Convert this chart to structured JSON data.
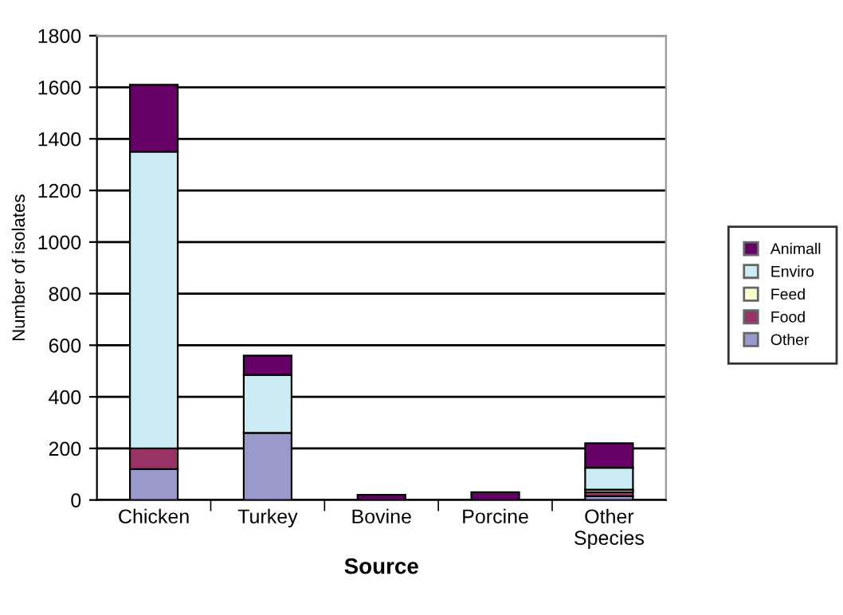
{
  "chart_data": {
    "type": "bar",
    "stacked": true,
    "xlabel": "Source",
    "ylabel": "Number of isolates",
    "categories": [
      "Chicken",
      "Turkey",
      "Bovine",
      "Porcine",
      "Other\nSpecies"
    ],
    "series": [
      {
        "name": "Other",
        "color": "#9999cc",
        "values": [
          120,
          260,
          0,
          0,
          15
        ]
      },
      {
        "name": "Food",
        "color": "#993366",
        "values": [
          80,
          0,
          0,
          0,
          15
        ]
      },
      {
        "name": "Feed",
        "color": "#ffffcc",
        "values": [
          0,
          0,
          0,
          0,
          10
        ]
      },
      {
        "name": "Enviro",
        "color": "#ccecf5",
        "values": [
          1150,
          225,
          0,
          0,
          85
        ]
      },
      {
        "name": "Animall",
        "color": "#660066",
        "values": [
          260,
          75,
          20,
          30,
          95
        ]
      }
    ],
    "ylim": [
      0,
      1800
    ],
    "yticks": [
      0,
      200,
      400,
      600,
      800,
      1000,
      1200,
      1400,
      1600,
      1800
    ],
    "grid": "y",
    "legend": "right"
  }
}
